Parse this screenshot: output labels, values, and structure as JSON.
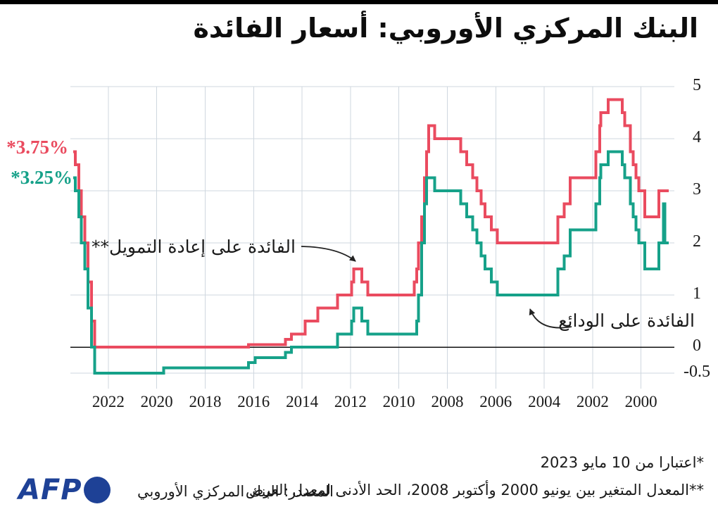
{
  "header": {
    "title": "البنك المركزي الأوروبي: أسعار الفائدة"
  },
  "labels": {
    "refi_current": "*3.75%",
    "deposit_current": "*3.25%",
    "refi_annotation": "الفائدة على إعادة التمويل**",
    "deposit_annotation": "الفائدة على الودائع"
  },
  "footer": {
    "footnote1": "*اعتبارا من 10 مايو 2023",
    "footnote2": "**المعدل المتغير بين يونيو 2000 وأكتوبر 2008، الحد الأدنى لمعدل العرض",
    "source": "المصدر: البنك المركزي الأوروبي",
    "logo": "AFP"
  },
  "colors": {
    "refi": "#ea4b5f",
    "deposit": "#16a189",
    "grid": "#cfd7df",
    "zero_axis": "#111111",
    "arrow": "#222222",
    "afp_blue": "#1e4196"
  },
  "chart_data": {
    "type": "line",
    "style": "step",
    "title": "البنك المركزي الأوروبي: أسعار الفائدة",
    "x_axis": {
      "unit": "year",
      "reversed": true,
      "range": [
        1998.85,
        2023.45
      ],
      "tick_years": [
        2022,
        2020,
        2018,
        2016,
        2014,
        2012,
        2010,
        2008,
        2006,
        2004,
        2002,
        2000
      ],
      "tick_labels": [
        "2022",
        "2020",
        "2018",
        "2016",
        "2014",
        "2012",
        "2010",
        "2008",
        "2006",
        "2004",
        "2002",
        "2000"
      ]
    },
    "y_axis": {
      "unit": "percent",
      "ticks": [
        5,
        4,
        3,
        2,
        1,
        0,
        -0.5
      ],
      "tick_labels": [
        "5",
        "4",
        "3",
        "2",
        "1",
        "0",
        "-0.5"
      ],
      "zero_line": true
    },
    "grid": true,
    "series": [
      {
        "name": "refinancing_rate",
        "label": "الفائدة على إعادة التمويل**",
        "current_value_label": "*3.75%",
        "color": "#ea4b5f",
        "points": [
          [
            1998.85,
            3.0
          ],
          [
            1999.27,
            2.5
          ],
          [
            1999.85,
            3.0
          ],
          [
            2000.09,
            3.25
          ],
          [
            2000.21,
            3.5
          ],
          [
            2000.32,
            3.75
          ],
          [
            2000.44,
            4.25
          ],
          [
            2000.67,
            4.5
          ],
          [
            2000.77,
            4.75
          ],
          [
            2001.36,
            4.5
          ],
          [
            2001.66,
            4.25
          ],
          [
            2001.71,
            3.75
          ],
          [
            2001.86,
            3.25
          ],
          [
            2002.93,
            2.75
          ],
          [
            2003.18,
            2.5
          ],
          [
            2003.43,
            2.0
          ],
          [
            2005.93,
            2.25
          ],
          [
            2006.18,
            2.5
          ],
          [
            2006.45,
            2.75
          ],
          [
            2006.6,
            3.0
          ],
          [
            2006.78,
            3.25
          ],
          [
            2006.95,
            3.5
          ],
          [
            2007.2,
            3.75
          ],
          [
            2007.45,
            4.0
          ],
          [
            2008.52,
            4.25
          ],
          [
            2008.77,
            3.75
          ],
          [
            2008.86,
            3.25
          ],
          [
            2008.94,
            2.5
          ],
          [
            2009.06,
            2.0
          ],
          [
            2009.19,
            1.5
          ],
          [
            2009.27,
            1.25
          ],
          [
            2009.36,
            1.0
          ],
          [
            2011.28,
            1.25
          ],
          [
            2011.53,
            1.5
          ],
          [
            2011.86,
            1.25
          ],
          [
            2011.95,
            1.0
          ],
          [
            2012.53,
            0.75
          ],
          [
            2013.35,
            0.5
          ],
          [
            2013.87,
            0.25
          ],
          [
            2014.44,
            0.15
          ],
          [
            2014.69,
            0.05
          ],
          [
            2016.21,
            0.0
          ],
          [
            2022.57,
            0.5
          ],
          [
            2022.7,
            1.25
          ],
          [
            2022.84,
            2.0
          ],
          [
            2022.97,
            2.5
          ],
          [
            2023.11,
            3.0
          ],
          [
            2023.22,
            3.5
          ],
          [
            2023.36,
            3.75
          ]
        ]
      },
      {
        "name": "deposit_rate",
        "label": "الفائدة على الودائع",
        "current_value_label": "*3.25%",
        "color": "#16a189",
        "points": [
          [
            1998.85,
            2.0
          ],
          [
            1999.01,
            2.75
          ],
          [
            1999.07,
            2.0
          ],
          [
            1999.27,
            1.5
          ],
          [
            1999.85,
            2.0
          ],
          [
            2000.09,
            2.25
          ],
          [
            2000.21,
            2.5
          ],
          [
            2000.32,
            2.75
          ],
          [
            2000.44,
            3.25
          ],
          [
            2000.67,
            3.5
          ],
          [
            2000.77,
            3.75
          ],
          [
            2001.36,
            3.5
          ],
          [
            2001.66,
            3.25
          ],
          [
            2001.71,
            2.75
          ],
          [
            2001.86,
            2.25
          ],
          [
            2002.93,
            1.75
          ],
          [
            2003.18,
            1.5
          ],
          [
            2003.43,
            1.0
          ],
          [
            2005.93,
            1.25
          ],
          [
            2006.18,
            1.5
          ],
          [
            2006.45,
            1.75
          ],
          [
            2006.6,
            2.0
          ],
          [
            2006.78,
            2.25
          ],
          [
            2006.95,
            2.5
          ],
          [
            2007.2,
            2.75
          ],
          [
            2007.45,
            3.0
          ],
          [
            2008.52,
            3.25
          ],
          [
            2008.86,
            2.75
          ],
          [
            2008.94,
            2.0
          ],
          [
            2009.06,
            1.0
          ],
          [
            2009.19,
            0.5
          ],
          [
            2009.27,
            0.25
          ],
          [
            2011.28,
            0.5
          ],
          [
            2011.53,
            0.75
          ],
          [
            2011.86,
            0.5
          ],
          [
            2011.95,
            0.25
          ],
          [
            2012.53,
            0.0
          ],
          [
            2014.44,
            -0.1
          ],
          [
            2014.69,
            -0.2
          ],
          [
            2015.94,
            -0.3
          ],
          [
            2016.21,
            -0.4
          ],
          [
            2019.71,
            -0.5
          ],
          [
            2022.57,
            0.0
          ],
          [
            2022.7,
            0.75
          ],
          [
            2022.84,
            1.5
          ],
          [
            2022.97,
            2.0
          ],
          [
            2023.11,
            2.5
          ],
          [
            2023.22,
            3.0
          ],
          [
            2023.36,
            3.25
          ]
        ]
      }
    ]
  }
}
